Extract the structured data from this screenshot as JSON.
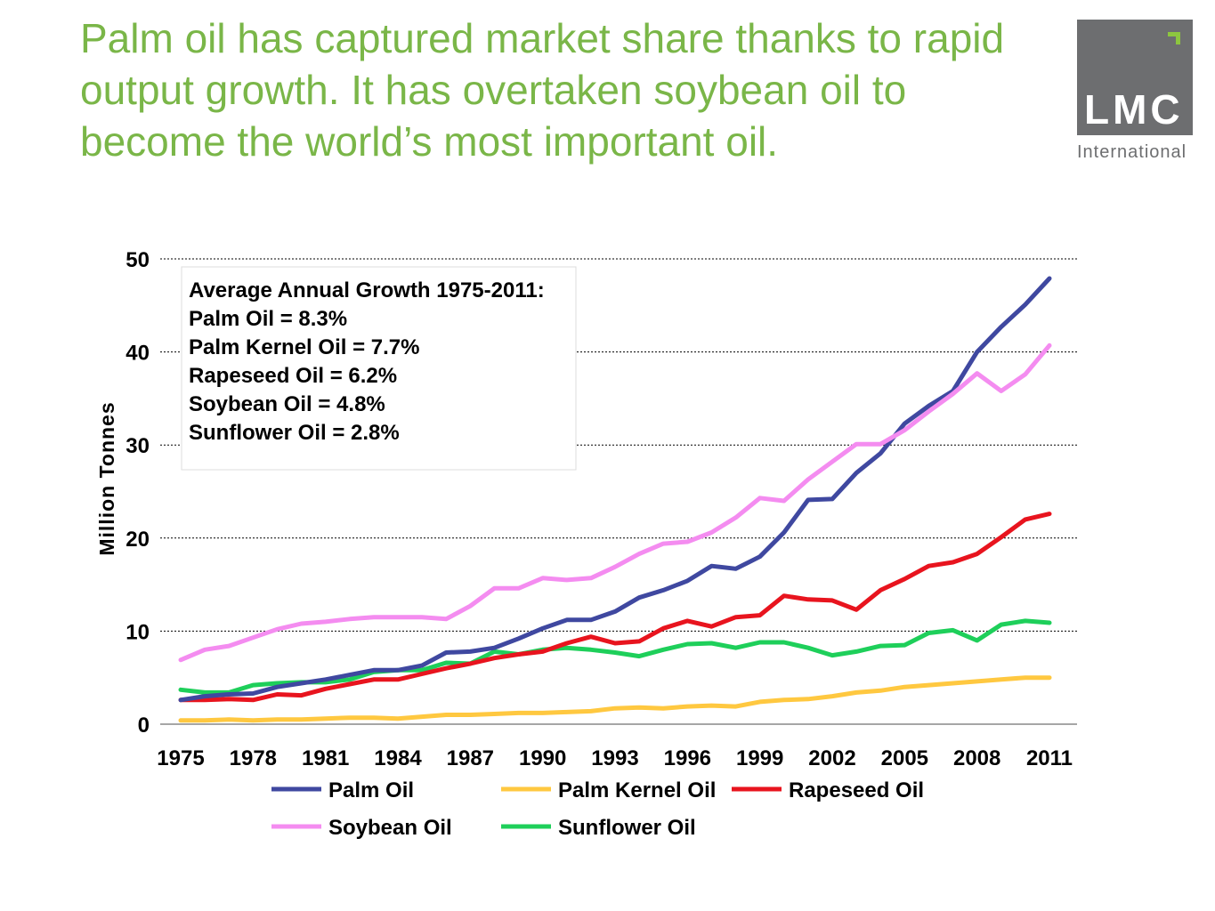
{
  "title": "Palm oil has captured market share thanks to rapid output growth. It has overtaken soybean oil to become the world’s most important oil.",
  "logo": {
    "name": "LMC",
    "sub": "International"
  },
  "colors": {
    "title": "#7ab648",
    "palm": "#3f48a0",
    "palm_kernel": "#ffc840",
    "rapeseed": "#e8141e",
    "soybean": "#f48cf0",
    "sunflower": "#1ecf5a"
  },
  "chart_data": {
    "type": "line",
    "ylabel": "Million Tonnes",
    "ylim": [
      0,
      50
    ],
    "yticks": [
      0,
      10,
      20,
      30,
      40,
      50
    ],
    "xticks": [
      1975,
      1978,
      1981,
      1984,
      1987,
      1990,
      1993,
      1996,
      1999,
      2002,
      2005,
      2008,
      2011
    ],
    "grid": true,
    "legend_position": "bottom",
    "x": [
      1975,
      1976,
      1977,
      1978,
      1979,
      1980,
      1981,
      1982,
      1983,
      1984,
      1985,
      1986,
      1987,
      1988,
      1989,
      1990,
      1991,
      1992,
      1993,
      1994,
      1995,
      1996,
      1997,
      1998,
      1999,
      2000,
      2001,
      2002,
      2003,
      2004,
      2005,
      2006,
      2007,
      2008,
      2009,
      2010,
      2011
    ],
    "series": [
      {
        "name": "Palm Oil",
        "color": "#3f48a0",
        "values": [
          2.6,
          3.0,
          3.2,
          3.3,
          4.0,
          4.4,
          4.8,
          5.3,
          5.8,
          5.8,
          6.3,
          7.7,
          7.8,
          8.2,
          9.2,
          10.3,
          11.2,
          11.2,
          12.1,
          13.6,
          14.4,
          15.4,
          17.0,
          16.7,
          18.0,
          20.6,
          24.1,
          24.2,
          27.0,
          29.1,
          32.3,
          34.2,
          35.8,
          40.0,
          42.7,
          45.1,
          47.9
        ]
      },
      {
        "name": "Palm Kernel Oil",
        "color": "#ffc840",
        "values": [
          0.4,
          0.4,
          0.5,
          0.4,
          0.5,
          0.5,
          0.6,
          0.7,
          0.7,
          0.6,
          0.8,
          1.0,
          1.0,
          1.1,
          1.2,
          1.2,
          1.3,
          1.4,
          1.7,
          1.8,
          1.7,
          1.9,
          2.0,
          1.9,
          2.4,
          2.6,
          2.7,
          3.0,
          3.4,
          3.6,
          4.0,
          4.2,
          4.4,
          4.6,
          4.8,
          5.0,
          5.0
        ]
      },
      {
        "name": "Rapeseed Oil",
        "color": "#e8141e",
        "values": [
          2.6,
          2.6,
          2.7,
          2.6,
          3.2,
          3.1,
          3.8,
          4.3,
          4.8,
          4.8,
          5.4,
          6.0,
          6.5,
          7.1,
          7.5,
          7.8,
          8.7,
          9.4,
          8.7,
          8.9,
          10.3,
          11.1,
          10.5,
          11.5,
          11.7,
          13.8,
          13.4,
          13.3,
          12.3,
          14.4,
          15.6,
          17.0,
          17.4,
          18.3,
          20.1,
          22.0,
          22.6
        ]
      },
      {
        "name": "Soybean Oil",
        "color": "#f48cf0",
        "values": [
          6.9,
          8.0,
          8.4,
          9.3,
          10.2,
          10.8,
          11.0,
          11.3,
          11.5,
          11.5,
          11.5,
          11.3,
          12.7,
          14.6,
          14.6,
          15.7,
          15.5,
          15.7,
          16.9,
          18.3,
          19.4,
          19.6,
          20.6,
          22.2,
          24.3,
          24.0,
          26.3,
          28.2,
          30.1,
          30.1,
          31.6,
          33.6,
          35.5,
          37.7,
          35.8,
          37.6,
          40.7
        ]
      },
      {
        "name": "Sunflower Oil",
        "color": "#1ecf5a",
        "values": [
          3.7,
          3.4,
          3.4,
          4.2,
          4.4,
          4.5,
          4.5,
          4.8,
          5.6,
          5.8,
          5.8,
          6.6,
          6.5,
          7.8,
          7.5,
          8.0,
          8.2,
          8.0,
          7.7,
          7.3,
          8.0,
          8.6,
          8.7,
          8.2,
          8.8,
          8.8,
          8.2,
          7.4,
          7.8,
          8.4,
          8.5,
          9.8,
          10.1,
          9.0,
          10.7,
          11.1,
          10.9
        ]
      }
    ],
    "annotation": {
      "title": "Average Annual Growth 1975-2011:",
      "lines": [
        "Palm Oil = 8.3%",
        "Palm Kernel Oil = 7.7%",
        "Rapeseed Oil = 6.2%",
        "Soybean Oil = 4.8%",
        "Sunflower Oil = 2.8%"
      ]
    }
  }
}
